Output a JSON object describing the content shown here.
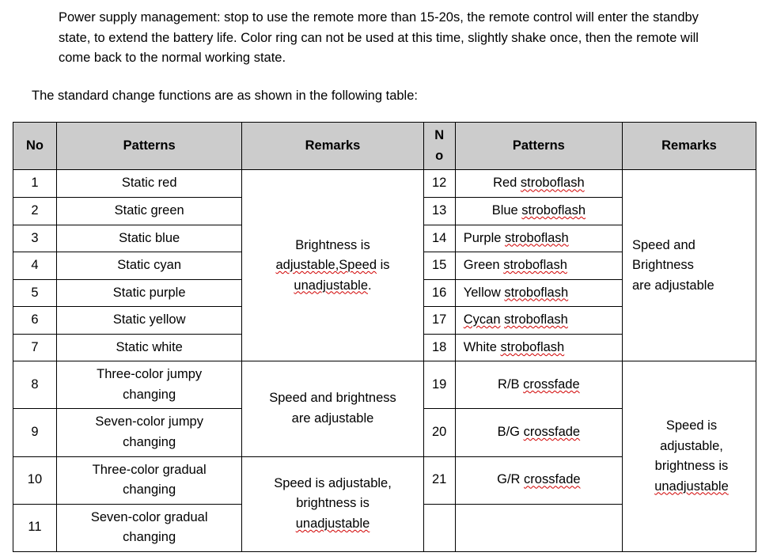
{
  "para1": "Power supply management: stop to use the remote more than 15-20s, the remote control will enter the standby state, to extend the battery life. Color ring can not be used at this time, slightly shake once, then the remote will come back to the normal working state.",
  "para2": "The standard change functions are as shown in the following table:",
  "headers": {
    "no1": "No",
    "pat1": "Patterns",
    "rem1": "Remarks",
    "no2_line1": "N",
    "no2_line2": "o",
    "pat2": "Patterns",
    "rem2": "Remarks"
  },
  "left": {
    "r1_no": "1",
    "r1_pat": "Static red",
    "r2_no": "2",
    "r2_pat": "Static green",
    "r3_no": "3",
    "r3_pat": "Static blue",
    "r4_no": "4",
    "r4_pat": "Static cyan",
    "r5_no": "5",
    "r5_pat": "Static purple",
    "r6_no": "6",
    "r6_pat": "Static yellow",
    "r7_no": "7",
    "r7_pat": "Static white",
    "r8_no": "8",
    "r8_pat_l1": "Three-color jumpy",
    "r8_pat_l2": "changing",
    "r9_no": "9",
    "r9_pat_l1": "Seven-color jumpy",
    "r9_pat_l2": "changing",
    "r10_no": "10",
    "r10_pat_l1": "Three-color gradual",
    "r10_pat_l2": "changing",
    "r11_no": "11",
    "r11_pat_l1": "Seven-color gradual",
    "r11_pat_l2": "changing"
  },
  "left_remarks": {
    "a_l1": "Brightness is",
    "a_l2_pre": "",
    "a_l2_sp": "adjustable,Speed",
    "a_l2_post": " is",
    "a_l3_sp": "unadjustable",
    "a_l3_post": ".",
    "b_l1": "Speed and brightness",
    "b_l2": "are adjustable",
    "c_l1": "Speed is adjustable,",
    "c_l2": "brightness is",
    "c_l3_sp": "unadjustable"
  },
  "right": {
    "r1_no": "12",
    "r1_pre": "Red ",
    "r1_sp": "stroboflash",
    "r2_no": "13",
    "r2_pre": "Blue ",
    "r2_sp": "stroboflash",
    "r3_no": "14",
    "r3_pre": "Purple ",
    "r3_sp": "stroboflash",
    "r4_no": "15",
    "r4_pre": "Green ",
    "r4_sp": "stroboflash",
    "r5_no": "16",
    "r5_pre": "Yellow ",
    "r5_sp": "stroboflash",
    "r6_no": "17",
    "r6_sp1": "Cycan",
    "r6_mid": " ",
    "r6_sp2": "stroboflash",
    "r7_no": "18",
    "r7_pre": "White ",
    "r7_sp": "stroboflash",
    "r8_no": "19",
    "r8_pre": "R/B ",
    "r8_sp": "crossfade",
    "r9_no": "20",
    "r9_pre": "B/G ",
    "r9_sp": "crossfade",
    "r10_no": "21",
    "r10_pre": "G/R ",
    "r10_sp": "crossfade"
  },
  "right_remarks": {
    "a_l1": "Speed and",
    "a_l2": "Brightness",
    "a_l3": "are adjustable",
    "b_l1": "Speed is",
    "b_l2": "adjustable,",
    "b_l3": "brightness is",
    "b_l4_sp": "unadjustable"
  }
}
